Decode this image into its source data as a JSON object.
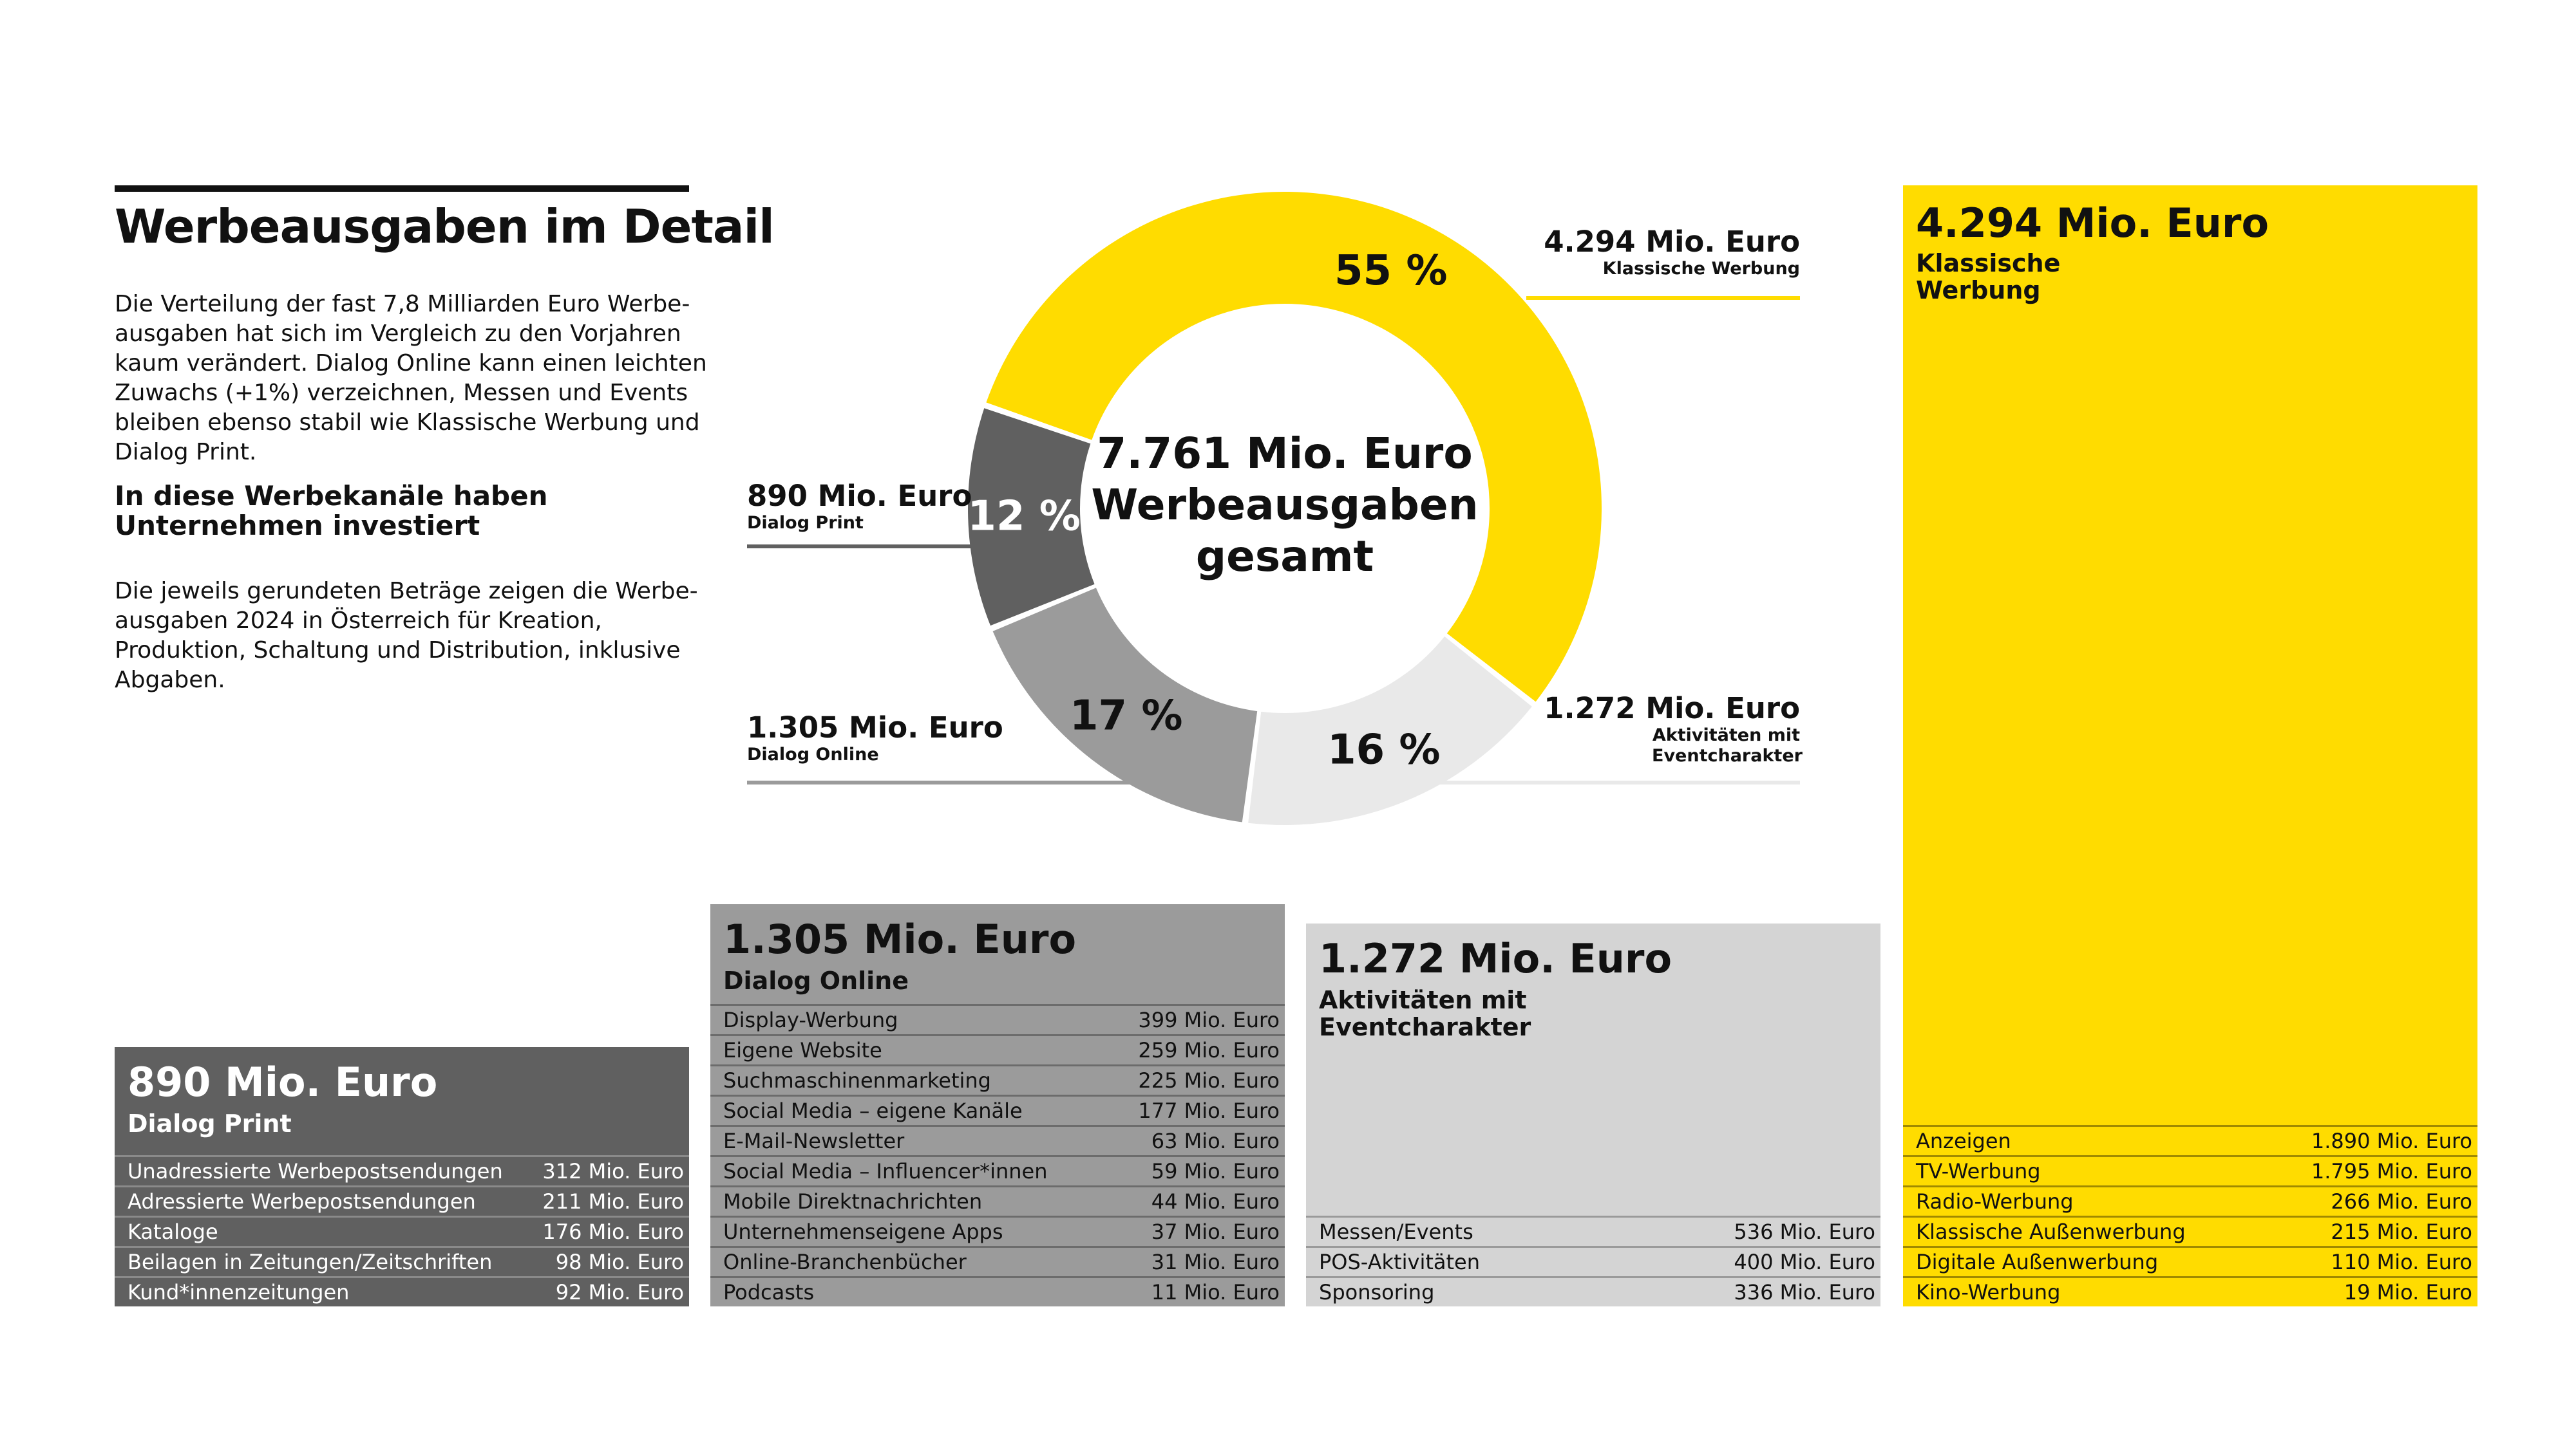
{
  "title": "Werbeausgaben im Detail",
  "intro": "Die Verteilung der fast 7,8 Milliarden Euro Werbe­ausgaben hat sich im Vergleich zu den Vorjahren kaum verändert. Dialog Online kann einen leichten Zuwachs (+1%) verzeichnen, Messen und Events bleiben ebenso stabil wie Klassische Werbung und Dialog Print.",
  "subheading": "In diese Werbekanäle haben Unternehmen investiert",
  "note": "Die jeweils gerundeten Beträge zeigen die Werbe­ausgaben 2024 in Österreich für Kreation, Produktion, Schaltung und Distribution, inklusive Abgaben.",
  "colors": {
    "klassische": "#ffdc00",
    "aktivitaeten": "#e9e9e9",
    "online": "#9b9b9b",
    "print": "#606060"
  },
  "chart_data": [
    {
      "type": "pie",
      "center_label": {
        "line1": "7.761 Mio. Euro",
        "line2": "Werbeausgaben",
        "line3": "gesamt"
      },
      "total": 7761,
      "unit": "Mio. Euro",
      "slices": [
        {
          "key": "klassische",
          "category": "Klassische Werbung",
          "amount": "4.294 Mio. Euro",
          "value": 4294,
          "percent_label": "55 %",
          "color": "#ffdc00"
        },
        {
          "key": "aktivitaeten",
          "category": "Aktivitäten mit Eventcharakter",
          "amount": "1.272 Mio. Euro",
          "value": 1272,
          "percent_label": "16 %",
          "color": "#e9e9e9"
        },
        {
          "key": "online",
          "category": "Dialog Online",
          "amount": "1.305 Mio. Euro",
          "value": 1305,
          "percent_label": "17 %",
          "color": "#9b9b9b"
        },
        {
          "key": "print",
          "category": "Dialog Print",
          "amount": "890 Mio. Euro",
          "value": 890,
          "percent_label": "12 %",
          "color": "#606060"
        }
      ]
    },
    {
      "type": "table",
      "amount": "890 Mio. Euro",
      "category": "Dialog Print",
      "value": 890,
      "rows": [
        {
          "label": "Unadressierte Werbepostsendungen",
          "value_label": "312 Mio. Euro",
          "value": 312
        },
        {
          "label": "Adressierte Werbepostsendungen",
          "value_label": "211 Mio. Euro",
          "value": 211
        },
        {
          "label": "Kataloge",
          "value_label": "176 Mio. Euro",
          "value": 176
        },
        {
          "label": "Beilagen in Zeitungen/Zeitschriften",
          "value_label": "98 Mio. Euro",
          "value": 98
        },
        {
          "label": "Kund*innenzeitungen",
          "value_label": "92 Mio. Euro",
          "value": 92
        }
      ]
    },
    {
      "type": "table",
      "amount": "1.305 Mio. Euro",
      "category": "Dialog Online",
      "value": 1305,
      "rows": [
        {
          "label": "Display-Werbung",
          "value_label": "399 Mio. Euro",
          "value": 399
        },
        {
          "label": "Eigene Website",
          "value_label": "259 Mio. Euro",
          "value": 259
        },
        {
          "label": "Suchmaschinenmarketing",
          "value_label": "225 Mio. Euro",
          "value": 225
        },
        {
          "label": "Social Media – eigene Kanäle",
          "value_label": "177 Mio. Euro",
          "value": 177
        },
        {
          "label": "E-Mail-Newsletter",
          "value_label": "63 Mio. Euro",
          "value": 63
        },
        {
          "label": "Social Media – Influencer*innen",
          "value_label": "59 Mio. Euro",
          "value": 59
        },
        {
          "label": "Mobile Direktnachrichten",
          "value_label": "44 Mio. Euro",
          "value": 44
        },
        {
          "label": "Unternehmenseigene Apps",
          "value_label": "37 Mio. Euro",
          "value": 37
        },
        {
          "label": "Online-Branchenbücher",
          "value_label": "31 Mio. Euro",
          "value": 31
        },
        {
          "label": "Podcasts",
          "value_label": "11 Mio. Euro",
          "value": 11
        }
      ]
    },
    {
      "type": "table",
      "amount": "1.272 Mio. Euro",
      "category": "Aktivitäten mit Eventcharakter",
      "value": 1272,
      "rows": [
        {
          "label": "Messen/Events",
          "value_label": "536 Mio. Euro",
          "value": 536
        },
        {
          "label": "POS-Aktivitäten",
          "value_label": "400 Mio. Euro",
          "value": 400
        },
        {
          "label": "Sponsoring",
          "value_label": "336 Mio. Euro",
          "value": 336
        }
      ]
    },
    {
      "type": "table",
      "amount": "4.294 Mio. Euro",
      "category": "Klassische Werbung",
      "value": 4294,
      "rows": [
        {
          "label": "Anzeigen",
          "value_label": "1.890 Mio. Euro",
          "value": 1890
        },
        {
          "label": "TV-Werbung",
          "value_label": "1.795 Mio. Euro",
          "value": 1795
        },
        {
          "label": "Radio-Werbung",
          "value_label": "266 Mio. Euro",
          "value": 266
        },
        {
          "label": "Klassische Außenwerbung",
          "value_label": "215 Mio. Euro",
          "value": 215
        },
        {
          "label": "Digitale Außenwerbung",
          "value_label": "110 Mio. Euro",
          "value": 110
        },
        {
          "label": "Kino-Werbung",
          "value_label": "19 Mio. Euro",
          "value": 19
        }
      ]
    }
  ]
}
